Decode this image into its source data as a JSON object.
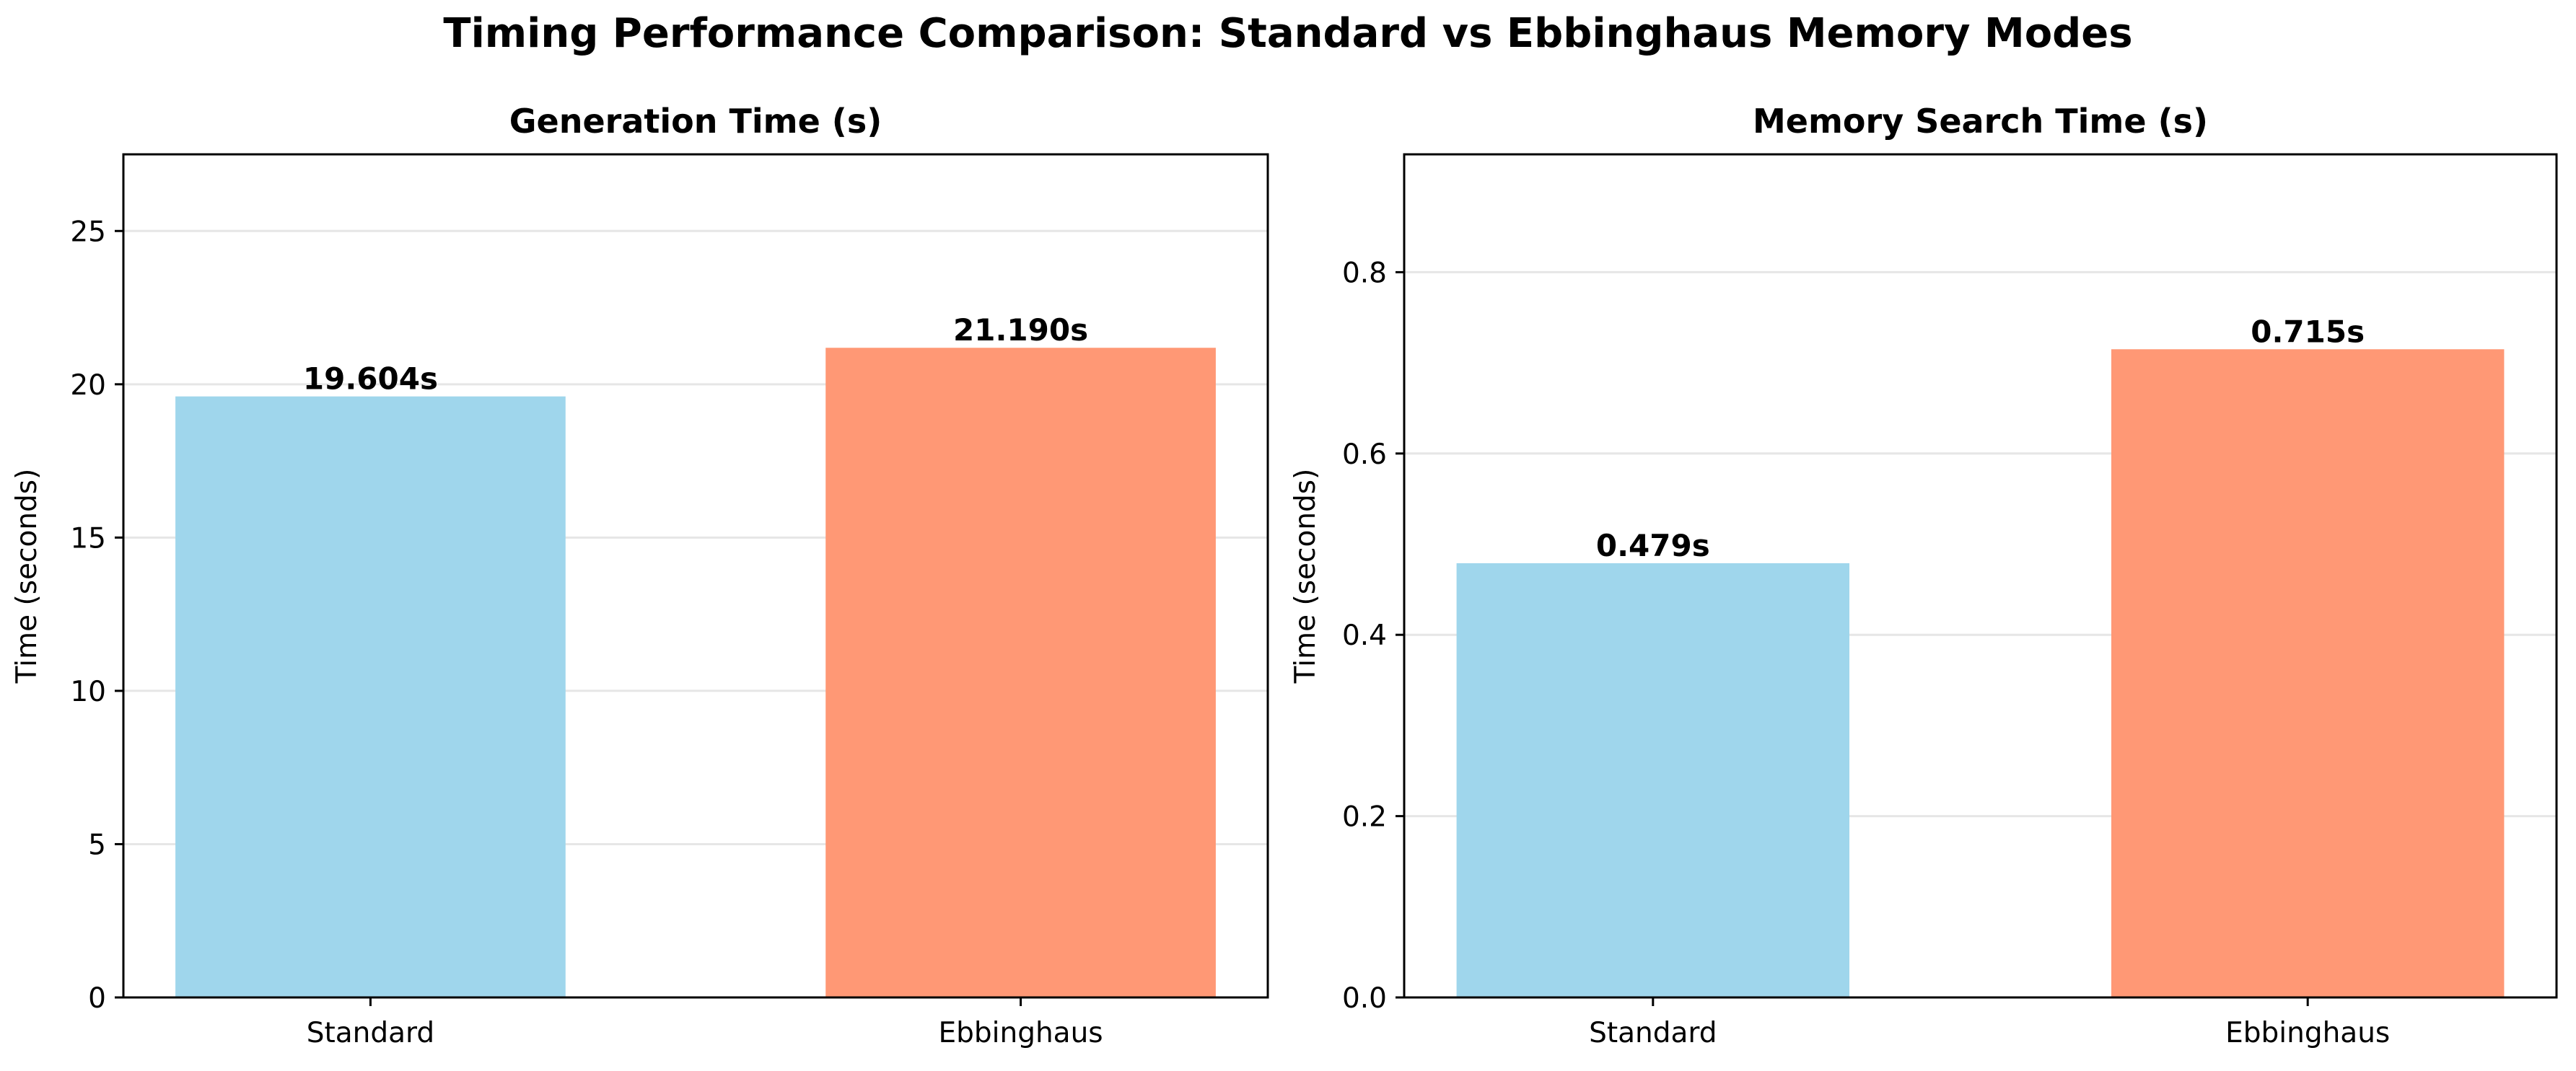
{
  "figure": {
    "title": "Timing Performance Comparison: Standard vs Ebbinghaus Memory Modes"
  },
  "chart_data": [
    {
      "type": "bar",
      "title": "Generation Time (s)",
      "xlabel": "",
      "ylabel": "Time (seconds)",
      "categories": [
        "Standard",
        "Ebbinghaus"
      ],
      "values": [
        19.604,
        21.19
      ],
      "value_labels": [
        "19.604s",
        "21.190s"
      ],
      "colors": [
        "#9fd6ec",
        "#ff9875"
      ],
      "ylim": [
        0,
        27.5
      ],
      "yticks": [
        0,
        5,
        10,
        15,
        20,
        25
      ],
      "ytick_labels": [
        "0",
        "5",
        "10",
        "15",
        "20",
        "25"
      ],
      "grid": "y",
      "legend": "none"
    },
    {
      "type": "bar",
      "title": "Memory Search Time (s)",
      "xlabel": "",
      "ylabel": "Time (seconds)",
      "categories": [
        "Standard",
        "Ebbinghaus"
      ],
      "values": [
        0.479,
        0.715
      ],
      "value_labels": [
        "0.479s",
        "0.715s"
      ],
      "colors": [
        "#9fd6ec",
        "#ff9875"
      ],
      "ylim": [
        0,
        0.93
      ],
      "yticks": [
        0.0,
        0.2,
        0.4,
        0.6,
        0.8
      ],
      "ytick_labels": [
        "0.0",
        "0.2",
        "0.4",
        "0.6",
        "0.8"
      ],
      "grid": "y",
      "legend": "none"
    }
  ]
}
